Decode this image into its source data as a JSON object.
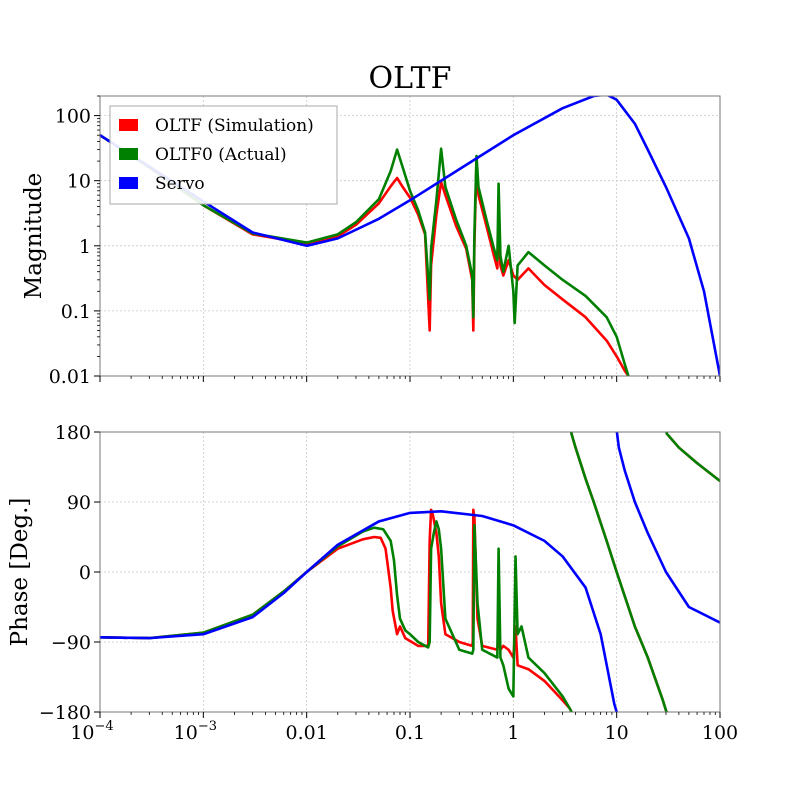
{
  "chart_data": [
    {
      "type": "line",
      "title": "OLTF",
      "xlabel": "",
      "ylabel": "Magnitude",
      "xscale": "log",
      "yscale": "log",
      "xlim": [
        0.0001,
        100
      ],
      "ylim": [
        0.01,
        200
      ],
      "grid": true,
      "legend_position": "top-left",
      "y_ticks": [
        {
          "value": 0.01,
          "label": "0.01"
        },
        {
          "value": 0.1,
          "label": "0.1"
        },
        {
          "value": 1,
          "label": "1"
        },
        {
          "value": 10,
          "label": "10"
        },
        {
          "value": 100,
          "label": "100"
        }
      ],
      "series": [
        {
          "name": "OLTF (Simulation)",
          "color": "#ff0000",
          "points": [
            [
              0.0001,
              50
            ],
            [
              0.0003,
              16
            ],
            [
              0.001,
              4.2
            ],
            [
              0.003,
              1.5
            ],
            [
              0.01,
              1.08
            ],
            [
              0.02,
              1.4
            ],
            [
              0.03,
              2.1
            ],
            [
              0.05,
              4.5
            ],
            [
              0.065,
              8.2
            ],
            [
              0.075,
              11
            ],
            [
              0.085,
              8
            ],
            [
              0.1,
              5.5
            ],
            [
              0.12,
              3
            ],
            [
              0.14,
              1.5
            ],
            [
              0.155,
              0.05
            ],
            [
              0.16,
              0.5
            ],
            [
              0.18,
              3
            ],
            [
              0.2,
              9.5
            ],
            [
              0.22,
              6
            ],
            [
              0.28,
              2
            ],
            [
              0.35,
              0.9
            ],
            [
              0.4,
              0.3
            ],
            [
              0.41,
              0.05
            ],
            [
              0.42,
              1
            ],
            [
              0.44,
              20
            ],
            [
              0.46,
              6
            ],
            [
              0.55,
              2
            ],
            [
              0.65,
              0.7
            ],
            [
              0.7,
              0.45
            ],
            [
              0.72,
              3.5
            ],
            [
              0.75,
              0.5
            ],
            [
              0.8,
              0.35
            ],
            [
              0.9,
              0.6
            ],
            [
              1.0,
              0.35
            ],
            [
              1.1,
              0.3
            ],
            [
              1.4,
              0.45
            ],
            [
              2,
              0.25
            ],
            [
              3,
              0.15
            ],
            [
              5,
              0.08
            ],
            [
              8,
              0.035
            ],
            [
              10,
              0.02
            ],
            [
              12,
              0.012
            ],
            [
              13,
              0.01
            ]
          ]
        },
        {
          "name": "OLTF0 (Actual)",
          "color": "#008000",
          "points": [
            [
              0.0001,
              50
            ],
            [
              0.0003,
              16
            ],
            [
              0.001,
              4.2
            ],
            [
              0.003,
              1.55
            ],
            [
              0.01,
              1.12
            ],
            [
              0.02,
              1.5
            ],
            [
              0.03,
              2.3
            ],
            [
              0.05,
              5.2
            ],
            [
              0.065,
              14
            ],
            [
              0.075,
              30
            ],
            [
              0.085,
              16
            ],
            [
              0.1,
              7
            ],
            [
              0.12,
              3.5
            ],
            [
              0.14,
              1.6
            ],
            [
              0.155,
              0.15
            ],
            [
              0.16,
              0.9
            ],
            [
              0.18,
              5
            ],
            [
              0.2,
              31
            ],
            [
              0.22,
              8
            ],
            [
              0.28,
              2.5
            ],
            [
              0.35,
              1.0
            ],
            [
              0.4,
              0.35
            ],
            [
              0.41,
              0.08
            ],
            [
              0.42,
              1.5
            ],
            [
              0.44,
              24
            ],
            [
              0.46,
              8
            ],
            [
              0.55,
              2.5
            ],
            [
              0.65,
              0.9
            ],
            [
              0.7,
              0.6
            ],
            [
              0.72,
              9
            ],
            [
              0.75,
              0.7
            ],
            [
              0.8,
              0.4
            ],
            [
              0.9,
              1
            ],
            [
              1.0,
              0.2
            ],
            [
              1.03,
              0.065
            ],
            [
              1.1,
              0.5
            ],
            [
              1.4,
              0.8
            ],
            [
              2,
              0.5
            ],
            [
              3,
              0.3
            ],
            [
              5,
              0.17
            ],
            [
              8,
              0.08
            ],
            [
              10,
              0.04
            ],
            [
              12,
              0.015
            ],
            [
              13,
              0.01
            ]
          ]
        },
        {
          "name": "Servo",
          "color": "#0000ff",
          "points": [
            [
              0.0001,
              50
            ],
            [
              0.0003,
              16.5
            ],
            [
              0.001,
              4.8
            ],
            [
              0.003,
              1.6
            ],
            [
              0.01,
              1.0
            ],
            [
              0.02,
              1.3
            ],
            [
              0.05,
              2.6
            ],
            [
              0.1,
              5
            ],
            [
              0.3,
              15
            ],
            [
              1,
              50
            ],
            [
              3,
              130
            ],
            [
              6,
              200
            ],
            [
              8,
              210
            ],
            [
              10,
              175
            ],
            [
              15,
              75
            ],
            [
              20,
              30
            ],
            [
              30,
              8
            ],
            [
              50,
              1.3
            ],
            [
              70,
              0.2
            ],
            [
              100,
              0.01
            ]
          ]
        }
      ]
    },
    {
      "type": "line",
      "title": "",
      "xlabel": "",
      "ylabel": "Phase [Deg.]",
      "xscale": "log",
      "yscale": "linear",
      "xlim": [
        0.0001,
        100
      ],
      "ylim": [
        -180,
        180
      ],
      "grid": true,
      "x_ticks": [
        {
          "value": 0.0001,
          "base": "10",
          "exp": "−4"
        },
        {
          "value": 0.001,
          "base": "10",
          "exp": "−3"
        },
        {
          "value": 0.01,
          "base": "0.01",
          "exp": ""
        },
        {
          "value": 0.1,
          "base": "0.1",
          "exp": ""
        },
        {
          "value": 1,
          "base": "1",
          "exp": ""
        },
        {
          "value": 10,
          "base": "10",
          "exp": ""
        },
        {
          "value": 100,
          "base": "100",
          "exp": ""
        }
      ],
      "y_ticks": [
        {
          "value": 180,
          "label": "180"
        },
        {
          "value": 90,
          "label": "90"
        },
        {
          "value": 0,
          "label": "0"
        },
        {
          "value": -90,
          "label": "−90"
        },
        {
          "value": -180,
          "label": "−180"
        }
      ],
      "series": [
        {
          "name": "OLTF (Simulation)",
          "color": "#ff0000",
          "points": [
            [
              0.0001,
              -84
            ],
            [
              0.0003,
              -85
            ],
            [
              0.001,
              -78
            ],
            [
              0.003,
              -55
            ],
            [
              0.006,
              -25
            ],
            [
              0.01,
              0
            ],
            [
              0.02,
              30
            ],
            [
              0.035,
              42
            ],
            [
              0.045,
              45
            ],
            [
              0.052,
              44
            ],
            [
              0.058,
              30
            ],
            [
              0.065,
              -20
            ],
            [
              0.068,
              -50
            ],
            [
              0.075,
              -80
            ],
            [
              0.08,
              -70
            ],
            [
              0.09,
              -85
            ],
            [
              0.12,
              -95
            ],
            [
              0.15,
              -95
            ],
            [
              0.155,
              40
            ],
            [
              0.16,
              80
            ],
            [
              0.165,
              76
            ],
            [
              0.18,
              50
            ],
            [
              0.19,
              20
            ],
            [
              0.2,
              -40
            ],
            [
              0.22,
              -80
            ],
            [
              0.3,
              -90
            ],
            [
              0.4,
              -95
            ],
            [
              0.405,
              -90
            ],
            [
              0.41,
              80
            ],
            [
              0.42,
              70
            ],
            [
              0.45,
              -60
            ],
            [
              0.5,
              -95
            ],
            [
              0.7,
              -100
            ],
            [
              0.72,
              -80
            ],
            [
              0.75,
              -100
            ],
            [
              0.8,
              -95
            ],
            [
              0.9,
              -100
            ],
            [
              1.0,
              -110
            ],
            [
              1.05,
              -70
            ],
            [
              1.1,
              -120
            ],
            [
              1.4,
              -125
            ],
            [
              2,
              -140
            ],
            [
              3,
              -165
            ],
            [
              3.5,
              -175
            ],
            [
              3.6,
              -178
            ],
            [
              3.65,
              178
            ],
            [
              4,
              160
            ],
            [
              5,
              120
            ],
            [
              6,
              90
            ],
            [
              8,
              40
            ],
            [
              10,
              0
            ],
            [
              15,
              -70
            ],
            [
              20,
              -110
            ],
            [
              28,
              -165
            ],
            [
              30,
              -178
            ],
            [
              30.5,
              178
            ],
            [
              40,
              160
            ],
            [
              60,
              140
            ],
            [
              100,
              117
            ]
          ]
        },
        {
          "name": "OLTF0 (Actual)",
          "color": "#008000",
          "points": [
            [
              0.0001,
              -84
            ],
            [
              0.0003,
              -85
            ],
            [
              0.001,
              -78
            ],
            [
              0.003,
              -55
            ],
            [
              0.006,
              -25
            ],
            [
              0.01,
              0
            ],
            [
              0.02,
              33
            ],
            [
              0.035,
              52
            ],
            [
              0.045,
              57
            ],
            [
              0.055,
              55
            ],
            [
              0.065,
              40
            ],
            [
              0.07,
              15
            ],
            [
              0.075,
              -30
            ],
            [
              0.08,
              -60
            ],
            [
              0.09,
              -75
            ],
            [
              0.1,
              -80
            ],
            [
              0.12,
              -90
            ],
            [
              0.15,
              -97
            ],
            [
              0.155,
              -90
            ],
            [
              0.16,
              30
            ],
            [
              0.17,
              50
            ],
            [
              0.18,
              65
            ],
            [
              0.19,
              55
            ],
            [
              0.2,
              30
            ],
            [
              0.22,
              -60
            ],
            [
              0.3,
              -100
            ],
            [
              0.4,
              -105
            ],
            [
              0.41,
              -100
            ],
            [
              0.42,
              60
            ],
            [
              0.45,
              -40
            ],
            [
              0.5,
              -100
            ],
            [
              0.7,
              -110
            ],
            [
              0.72,
              30
            ],
            [
              0.75,
              -110
            ],
            [
              0.8,
              -120
            ],
            [
              0.9,
              -150
            ],
            [
              1.0,
              -160
            ],
            [
              1.05,
              20
            ],
            [
              1.1,
              -80
            ],
            [
              1.2,
              -70
            ],
            [
              1.4,
              -110
            ],
            [
              2,
              -130
            ],
            [
              3,
              -160
            ],
            [
              3.5,
              -175
            ],
            [
              3.6,
              -178
            ],
            [
              3.65,
              178
            ],
            [
              4,
              160
            ],
            [
              5,
              120
            ],
            [
              6,
              90
            ],
            [
              8,
              40
            ],
            [
              10,
              0
            ],
            [
              15,
              -70
            ],
            [
              20,
              -110
            ],
            [
              28,
              -165
            ],
            [
              30,
              -178
            ],
            [
              30.5,
              178
            ],
            [
              40,
              160
            ],
            [
              60,
              140
            ],
            [
              100,
              117
            ]
          ]
        },
        {
          "name": "Servo",
          "color": "#0000ff",
          "points": [
            [
              0.0001,
              -84
            ],
            [
              0.0003,
              -85
            ],
            [
              0.001,
              -80
            ],
            [
              0.003,
              -58
            ],
            [
              0.006,
              -27
            ],
            [
              0.01,
              0
            ],
            [
              0.02,
              35
            ],
            [
              0.05,
              65
            ],
            [
              0.1,
              76
            ],
            [
              0.2,
              78
            ],
            [
              0.5,
              72
            ],
            [
              1,
              60
            ],
            [
              2,
              40
            ],
            [
              3,
              20
            ],
            [
              5,
              -20
            ],
            [
              7,
              -80
            ],
            [
              9.5,
              -170
            ],
            [
              10,
              -180
            ],
            [
              10.05,
              180
            ],
            [
              10.5,
              160
            ],
            [
              12,
              130
            ],
            [
              15,
              90
            ],
            [
              20,
              50
            ],
            [
              30,
              0
            ],
            [
              50,
              -45
            ],
            [
              100,
              -65
            ]
          ]
        }
      ]
    }
  ]
}
